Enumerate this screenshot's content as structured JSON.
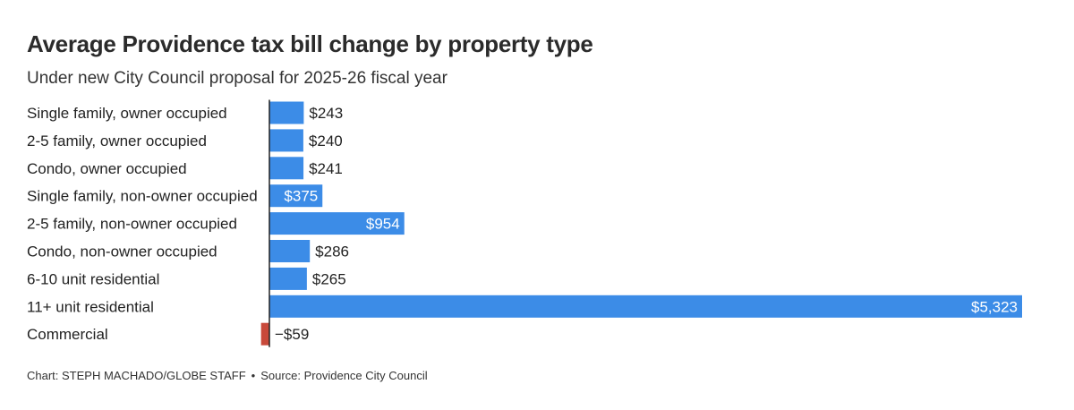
{
  "title": "Average Providence tax bill change by property type",
  "subtitle": "Under new City Council proposal for 2025-26 fiscal year",
  "footer": {
    "credit": "Chart: STEPH MACHADO/GLOBE STAFF",
    "separator": "•",
    "source": "Source: Providence City Council"
  },
  "chart_data": {
    "type": "bar",
    "orientation": "horizontal",
    "categories": [
      "Single family, owner occupied",
      "2-5 family, owner occupied",
      "Condo, owner occupied",
      "Single family, non-owner occupied",
      "2-5 family, non-owner occupied",
      "Condo, non-owner occupied",
      "6-10 unit residential",
      "11+ unit residential",
      "Commercial"
    ],
    "values": [
      243,
      240,
      241,
      375,
      954,
      286,
      265,
      5323,
      -59
    ],
    "value_labels": [
      "$243",
      "$240",
      "$241",
      "$375",
      "$954",
      "$286",
      "$265",
      "$5,323",
      "−$59"
    ],
    "label_inside": [
      false,
      false,
      false,
      true,
      true,
      false,
      false,
      true,
      false
    ],
    "positive_color": "#3c8ce7",
    "negative_color": "#c8493a",
    "axis_color": "#222222",
    "xlim": [
      -59,
      5323
    ],
    "grid": false,
    "legend": "none"
  }
}
